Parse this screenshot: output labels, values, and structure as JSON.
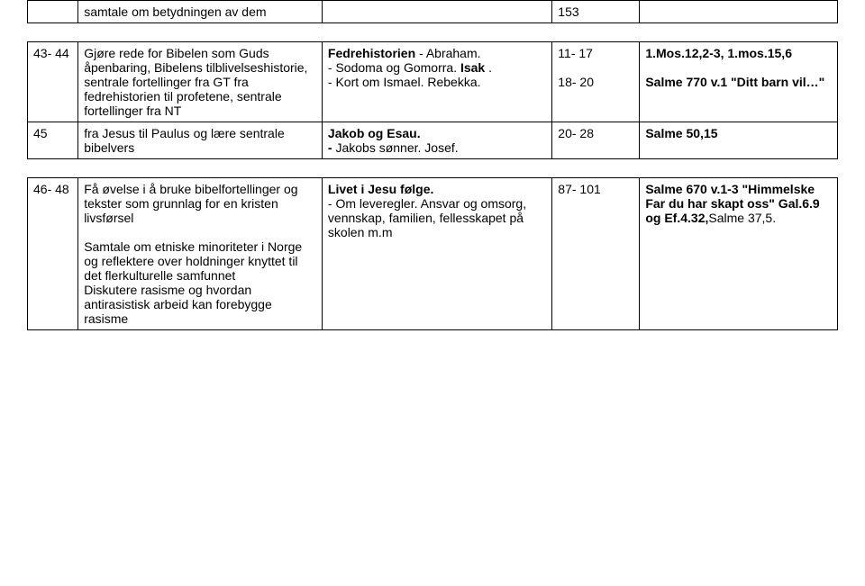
{
  "table1": {
    "row1": {
      "c1": "",
      "c2": "samtale om betydningen av dem",
      "c3": "",
      "c4": "153",
      "c5": ""
    }
  },
  "table2": {
    "row1": {
      "c1": "43- 44",
      "c2": "Gjøre rede for Bibelen som Guds åpenbaring, Bibelens tilblivelseshistorie, sentrale fortellinger fra GT fra fedrehistorien til profetene, sentrale fortellinger fra NT",
      "c3a": "Fedrehistorien",
      "c3b": " - Abraham.",
      "c3c": " - Sodoma og Gomorra. ",
      "c3d": "Isak",
      "c3e": " .",
      "c3f": " - Kort om Ismael. Rebekka.",
      "c4a": "11- 17",
      "c4b": "18- 20",
      "c5a": "1.Mos.12,2-3, 1.mos.15,6",
      "c5b": "Salme 770 v.1 \"Ditt barn vil…\""
    },
    "row2": {
      "c1": "45",
      "c2": "fra Jesus til Paulus og lære sentrale bibelvers",
      "c3a": "Jakob og Esau.",
      "c3b": " - ",
      "c3c": "Jakobs sønner. Josef.",
      "c4": "20- 28",
      "c5": "Salme 50,15"
    }
  },
  "table3": {
    "row1": {
      "c1": "46- 48",
      "c2a": "Få øvelse i å bruke bibelfortellinger og tekster som grunnlag for en kristen livsførsel",
      "c2b": "Samtale om etniske minoriteter i Norge og reflektere over holdninger knyttet til det flerkulturelle samfunnet",
      "c2c": "Diskutere rasisme og hvordan antirasistisk arbeid kan forebygge rasisme",
      "c3a": "Livet i Jesu følge.",
      "c3b": " - Om leveregler. Ansvar og omsorg, vennskap, familien, fellesskapet på skolen m.m",
      "c4": "87- 101",
      "c5a": "Salme 670 v.1-3 \"Himmelske Far du har skapt oss\" Gal.6.9 og Ef.4.32,",
      "c5b": "Salme 37,5."
    }
  }
}
